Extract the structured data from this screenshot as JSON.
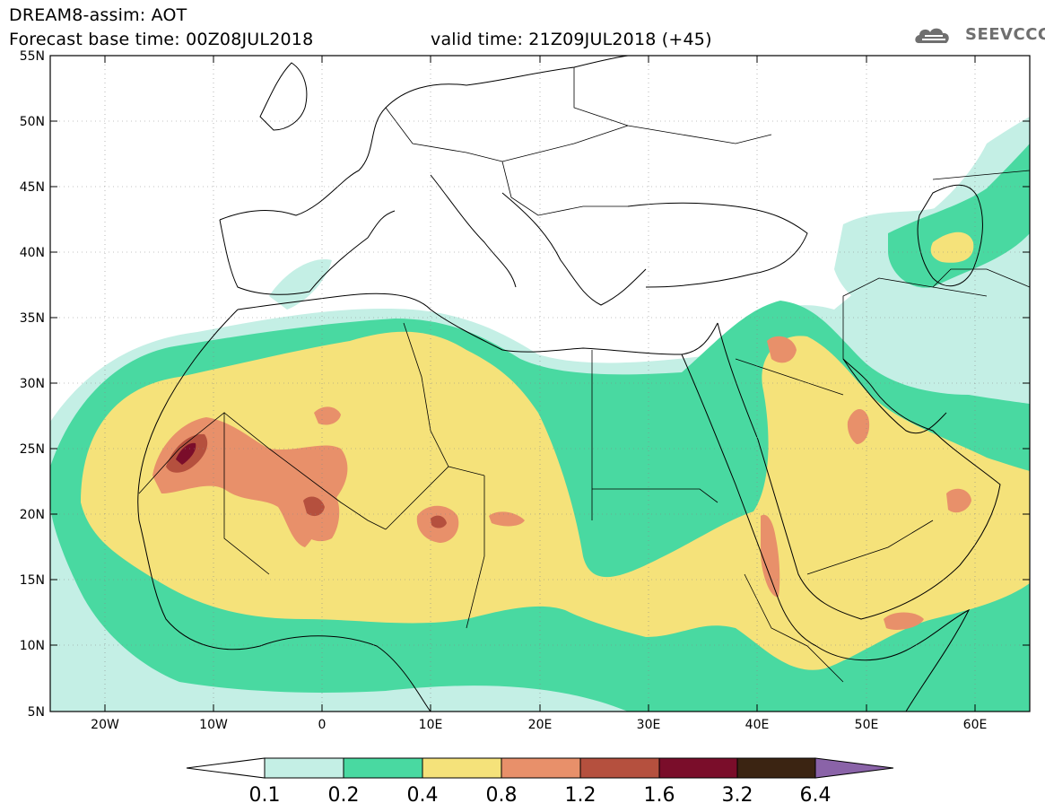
{
  "header": {
    "title_line1": "DREAM8-assim: AOT",
    "title_line2": "Forecast base time: 00Z08JUL2018",
    "valid_time": "valid time: 21Z09JUL2018 (+45)",
    "logo_text": "SEEVCCC",
    "logo_icon": "cloud-icon"
  },
  "map": {
    "variable": "AOT",
    "lon_range": [
      -25,
      65
    ],
    "lat_range": [
      5,
      55
    ],
    "lat_ticks": [
      "5N",
      "10N",
      "15N",
      "20N",
      "25N",
      "30N",
      "35N",
      "40N",
      "45N",
      "50N",
      "55N"
    ],
    "lon_ticks": [
      "20W",
      "10W",
      "0",
      "10E",
      "20E",
      "30E",
      "40E",
      "50E",
      "60E"
    ]
  },
  "colorbar": {
    "levels": [
      "0.1",
      "0.2",
      "0.4",
      "0.8",
      "1.2",
      "1.6",
      "3.2",
      "6.4"
    ],
    "colors": [
      "#ffffff",
      "#c4efe5",
      "#49d9a1",
      "#f5e27a",
      "#e8906a",
      "#b5503e",
      "#7a0d2a",
      "#3b2412",
      "#8a63a8"
    ]
  }
}
